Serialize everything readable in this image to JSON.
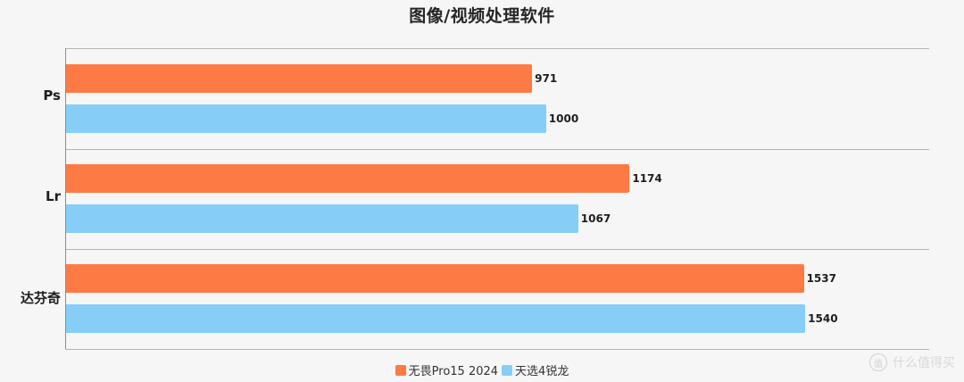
{
  "chart_data": {
    "type": "bar",
    "orientation": "horizontal",
    "title": "图像/视频处理软件",
    "categories": [
      "Ps",
      "Lr",
      "达芬奇"
    ],
    "series": [
      {
        "name": "无畏Pro15 2024",
        "color": "#fe7a45",
        "values": [
          971,
          1174,
          1537
        ]
      },
      {
        "name": "天选4锐龙",
        "color": "#86cdf7",
        "values": [
          1000,
          1067,
          1540
        ]
      }
    ],
    "xlabel": "",
    "ylabel": "",
    "xlim": [
      0,
      1800
    ],
    "grid": true,
    "data_labels": true,
    "legend_position": "bottom"
  },
  "labels": {
    "title": "图像/视频处理软件",
    "categories": [
      "Ps",
      "Lr",
      "达芬奇"
    ],
    "bars": [
      [
        "971",
        "1000"
      ],
      [
        "1174",
        "1067"
      ],
      [
        "1537",
        "1540"
      ]
    ],
    "legend": [
      "无畏Pro15 2024",
      "天选4锐龙"
    ]
  },
  "watermark": {
    "badge": "值",
    "text": "什么值得买"
  }
}
